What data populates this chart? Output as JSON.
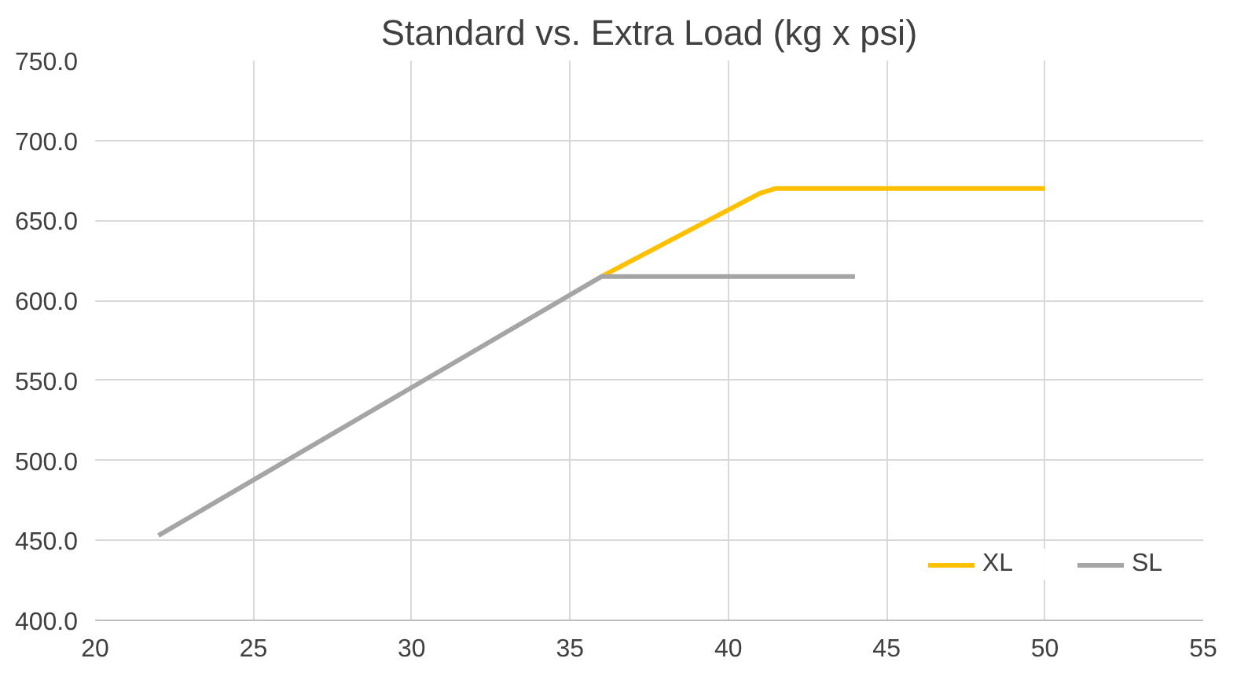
{
  "chart_data": {
    "type": "line",
    "title": "Standard vs. Extra Load (kg x psi)",
    "series": [
      {
        "name": "XL",
        "color": "#ffc000",
        "x": [
          36,
          41,
          41.5,
          50
        ],
        "values": [
          615,
          667,
          670,
          670
        ]
      },
      {
        "name": "SL",
        "color": "#a5a5a5",
        "x": [
          22,
          36,
          44
        ],
        "values": [
          453,
          615,
          615
        ]
      }
    ],
    "xlim": [
      20,
      55
    ],
    "xticks": [
      20,
      25,
      30,
      35,
      40,
      45,
      50,
      55
    ],
    "ylim": [
      400,
      750
    ],
    "yticks": [
      {
        "value": 400,
        "label": "400.0"
      },
      {
        "value": 450,
        "label": "450.0"
      },
      {
        "value": 500,
        "label": "500.0"
      },
      {
        "value": 550,
        "label": "550.0"
      },
      {
        "value": 600,
        "label": "600.0"
      },
      {
        "value": 650,
        "label": "650.0"
      },
      {
        "value": 700,
        "label": "700.0"
      },
      {
        "value": 750,
        "label": "750.0"
      }
    ],
    "grid": true,
    "legend": "bottom right",
    "marker": "none",
    "line_style": "solid"
  }
}
